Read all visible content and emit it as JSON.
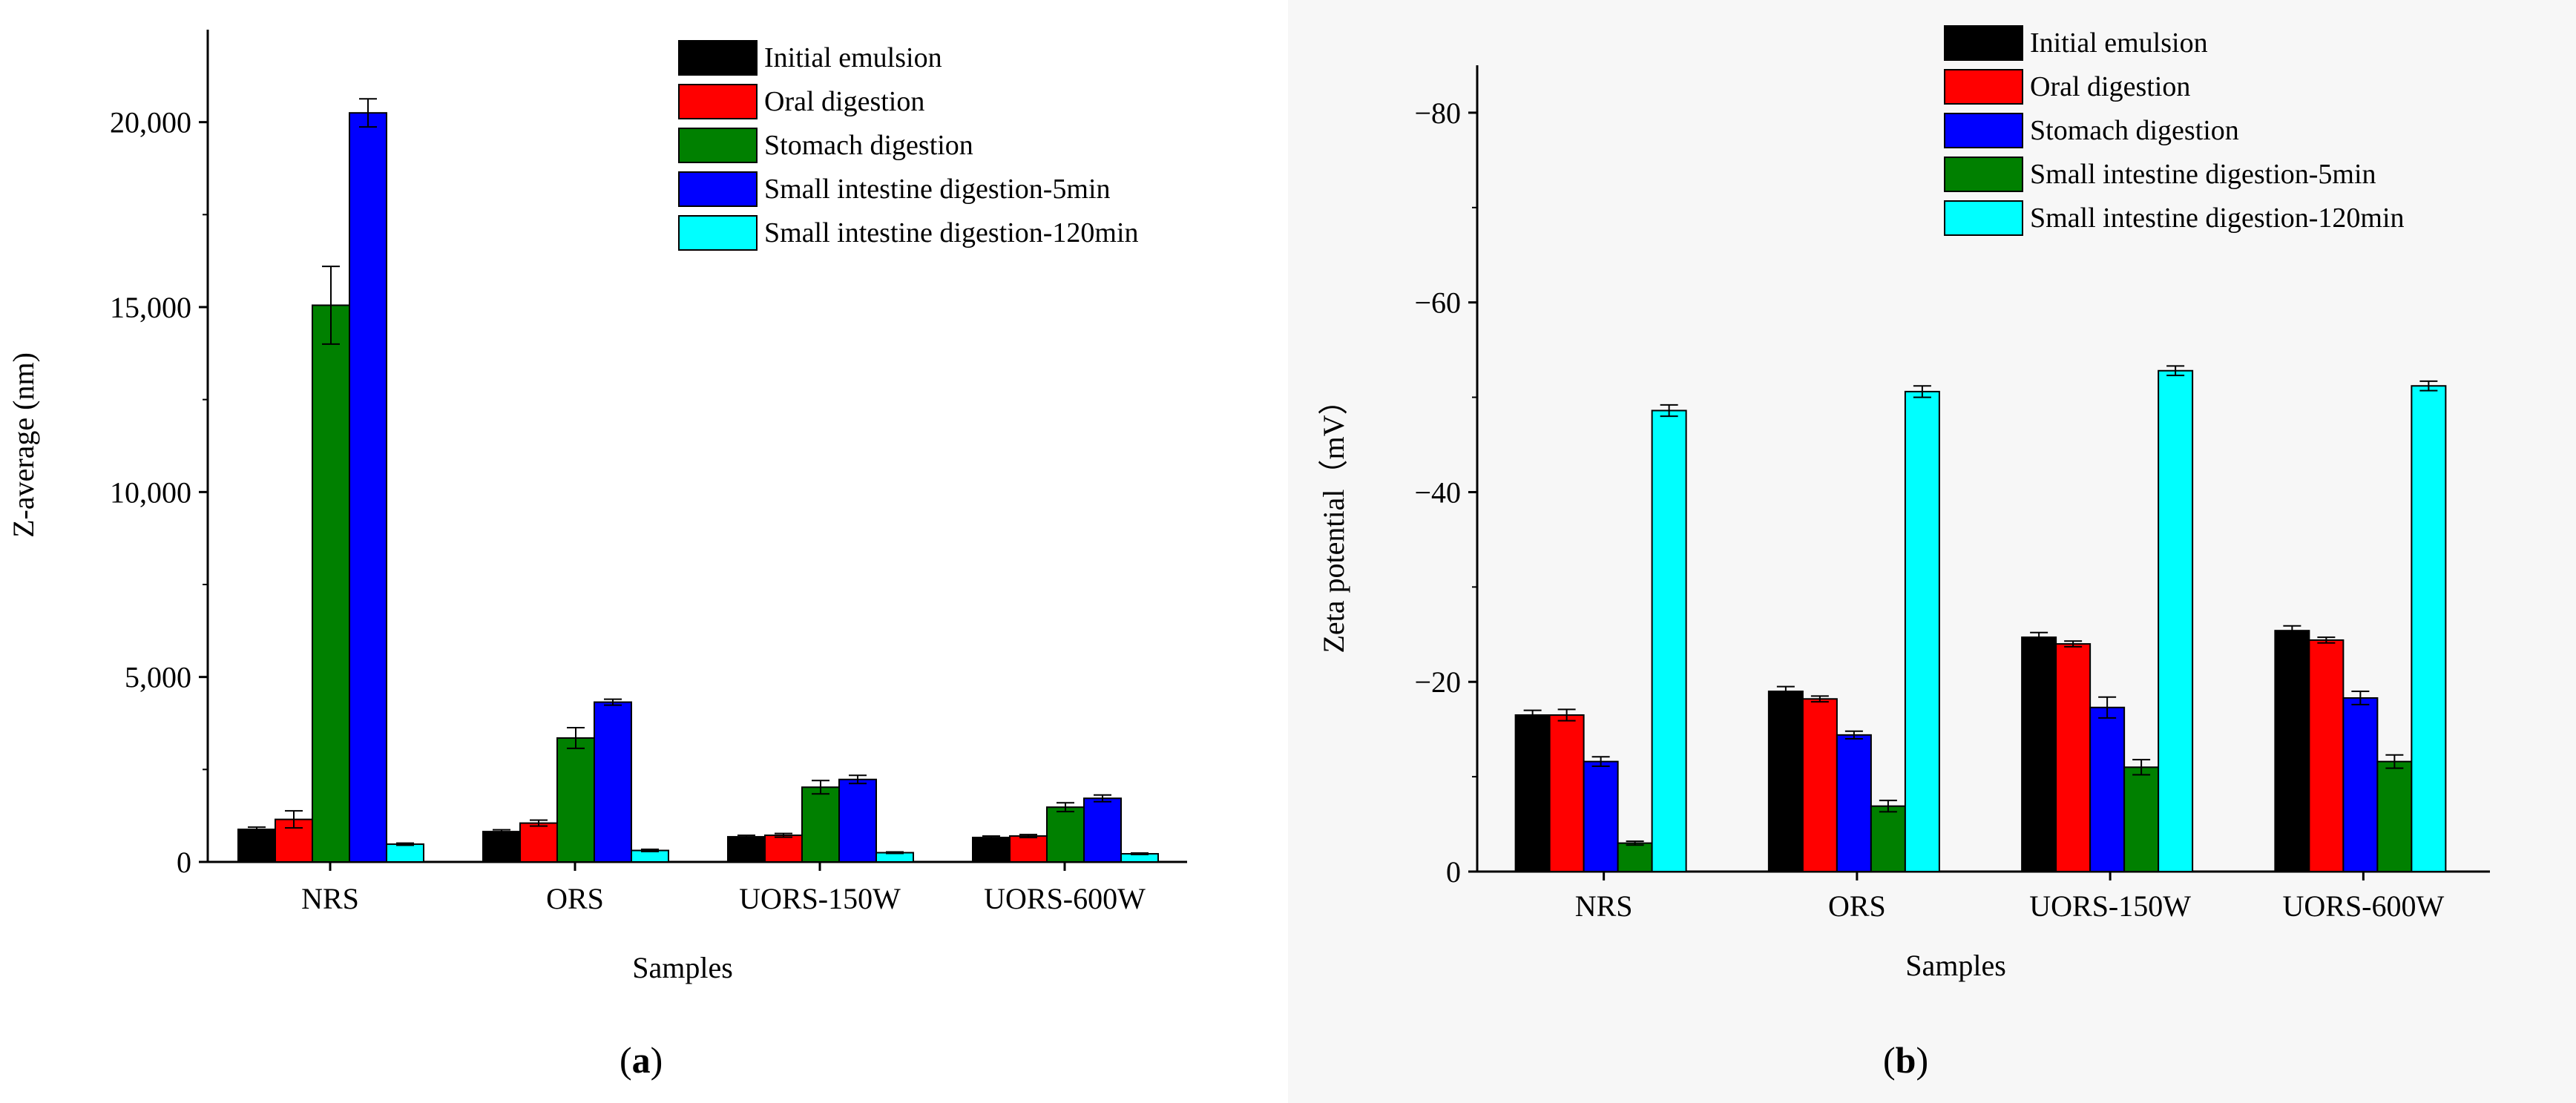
{
  "chart_data": [
    {
      "type": "bar",
      "panel_label": "a",
      "title": "",
      "xlabel": "Samples",
      "ylabel": "Z-average (nm)",
      "ylim": [
        0,
        22500
      ],
      "yticks": [
        0,
        5000,
        10000,
        15000,
        20000
      ],
      "ytick_labels": [
        "0",
        "5,000",
        "10,000",
        "15,000",
        "20,000"
      ],
      "y_inverted": false,
      "categories": [
        "NRS",
        "ORS",
        "UORS-150W",
        "UORS-600W"
      ],
      "legend_position": "top-right",
      "series": [
        {
          "name": "Initial emulsion",
          "color": "#000000",
          "values": [
            880,
            820,
            680,
            660
          ],
          "errors": [
            60,
            50,
            40,
            40
          ]
        },
        {
          "name": "Oral digestion",
          "color": "#ff0000",
          "values": [
            1150,
            1050,
            720,
            700
          ],
          "errors": [
            230,
            80,
            50,
            40
          ]
        },
        {
          "name": "Stomach digestion",
          "color": "#008000",
          "values": [
            15050,
            3350,
            2020,
            1480
          ],
          "errors": [
            1050,
            280,
            180,
            120
          ]
        },
        {
          "name": "Small intestine digestion-5min",
          "color": "#0000ff",
          "values": [
            20250,
            4320,
            2230,
            1720
          ],
          "errors": [
            380,
            80,
            110,
            90
          ]
        },
        {
          "name": "Small intestine digestion-120min",
          "color": "#00ffff",
          "values": [
            480,
            310,
            250,
            220
          ],
          "errors": [
            30,
            30,
            20,
            20
          ]
        }
      ]
    },
    {
      "type": "bar",
      "panel_label": "b",
      "title": "",
      "xlabel": "Samples",
      "ylabel": "Zeta potential（mV）",
      "ylim": [
        0,
        -85
      ],
      "yticks": [
        0,
        -20,
        -40,
        -60,
        -80
      ],
      "ytick_labels": [
        "0",
        "−20",
        "−40",
        "−60",
        "−80"
      ],
      "y_inverted": true,
      "categories": [
        "NRS",
        "ORS",
        "UORS-150W",
        "UORS-600W"
      ],
      "legend_position": "top-right",
      "series": [
        {
          "name": "Initial emulsion",
          "color": "#000000",
          "values": [
            -16.5,
            -19.0,
            -24.7,
            -25.4
          ],
          "errors": [
            0.5,
            0.5,
            0.5,
            0.5
          ]
        },
        {
          "name": "Oral digestion",
          "color": "#ff0000",
          "values": [
            -16.5,
            -18.2,
            -24.0,
            -24.4
          ],
          "errors": [
            0.6,
            0.3,
            0.3,
            0.3
          ]
        },
        {
          "name": "Stomach digestion",
          "color": "#0000ff",
          "values": [
            -11.6,
            -14.4,
            -17.3,
            -18.3
          ],
          "errors": [
            0.5,
            0.4,
            1.1,
            0.7
          ]
        },
        {
          "name": "Small intestine digestion-5min",
          "color": "#008000",
          "values": [
            -3.0,
            -6.9,
            -11.0,
            -11.6
          ],
          "errors": [
            0.2,
            0.6,
            0.8,
            0.7
          ]
        },
        {
          "name": "Small intestine digestion-120min",
          "color": "#00ffff",
          "values": [
            -48.6,
            -50.6,
            -52.8,
            -51.2
          ],
          "errors": [
            0.6,
            0.6,
            0.5,
            0.5
          ]
        }
      ]
    }
  ],
  "captions": {
    "a": {
      "open": "(",
      "label": "a",
      "close": ")"
    },
    "b": {
      "open": "(",
      "label": "b",
      "close": ")"
    }
  }
}
